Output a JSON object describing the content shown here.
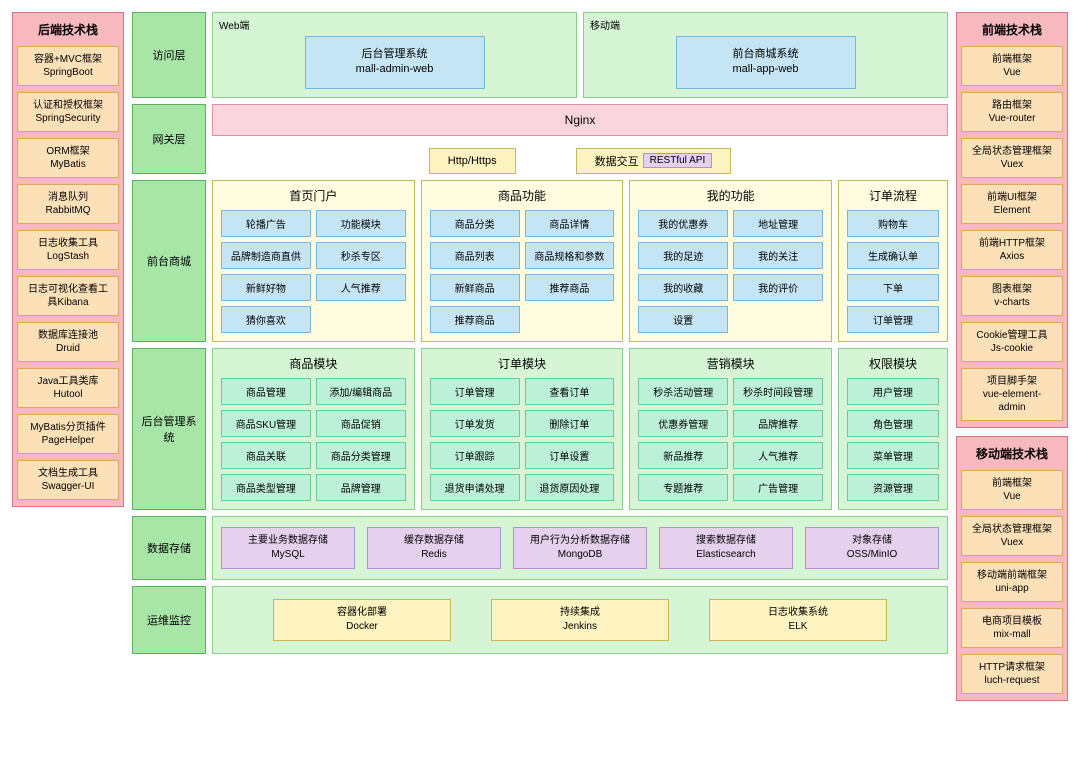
{
  "colors": {
    "pink_bg": "#f7b9bd",
    "pink_border": "#d97580",
    "green_bg": "#a8e6a8",
    "green_border": "#5fb05f",
    "lightgreen_bg": "#d5f5d5",
    "lightgreen_border": "#8ecf8e",
    "yellow_bg": "#fdf3c0",
    "yellow_border": "#c9b858",
    "lightyellow_bg": "#fffce0",
    "orange_bg": "#fce0b8",
    "orange_border": "#d9a860",
    "blue_bg": "#c5e5f5",
    "blue_border": "#7ab8d8",
    "mint_bg": "#bdf0d8",
    "mint_border": "#6fc9a0",
    "purple_bg": "#e5d0ee",
    "purple_border": "#b590c9",
    "pinkbar_bg": "#fbd5de",
    "pinkbar_border": "#d98fa0"
  },
  "left_stack": {
    "title": "后端技术栈",
    "items": [
      {
        "l1": "容器+MVC框架",
        "l2": "SpringBoot"
      },
      {
        "l1": "认证和授权框架",
        "l2": "SpringSecurity"
      },
      {
        "l1": "ORM框架",
        "l2": "MyBatis"
      },
      {
        "l1": "消息队列",
        "l2": "RabbitMQ"
      },
      {
        "l1": "日志收集工具",
        "l2": "LogStash"
      },
      {
        "l1": "日志可视化查看工",
        "l2": "具Kibana"
      },
      {
        "l1": "数据库连接池",
        "l2": "Druid"
      },
      {
        "l1": "Java工具类库",
        "l2": "Hutool"
      },
      {
        "l1": "MyBatis分页插件",
        "l2": "PageHelper"
      },
      {
        "l1": "文档生成工具",
        "l2": "Swagger-UI"
      }
    ]
  },
  "right_stack_1": {
    "title": "前端技术栈",
    "items": [
      {
        "l1": "前端框架",
        "l2": "Vue"
      },
      {
        "l1": "路由框架",
        "l2": "Vue-router"
      },
      {
        "l1": "全局状态管理框架",
        "l2": "Vuex"
      },
      {
        "l1": "前端UI框架",
        "l2": "Element"
      },
      {
        "l1": "前端HTTP框架",
        "l2": "Axios"
      },
      {
        "l1": "图表框架",
        "l2": "v-charts"
      },
      {
        "l1": "Cookie管理工具",
        "l2": "Js-cookie"
      },
      {
        "l1": "项目脚手架",
        "l2": "vue-element-",
        "l3": "admin"
      }
    ]
  },
  "right_stack_2": {
    "title": "移动端技术栈",
    "items": [
      {
        "l1": "前端框架",
        "l2": "Vue"
      },
      {
        "l1": "全局状态管理框架",
        "l2": "Vuex"
      },
      {
        "l1": "移动端前端框架",
        "l2": "uni-app"
      },
      {
        "l1": "电商项目模板",
        "l2": "mix-mall"
      },
      {
        "l1": "HTTP请求框架",
        "l2": "luch-request"
      }
    ]
  },
  "layers": {
    "access": {
      "label": "访问层",
      "web_label": "Web端",
      "web_l1": "后台管理系统",
      "web_l2": "mall-admin-web",
      "mobile_label": "移动端",
      "mobile_l1": "前台商城系统",
      "mobile_l2": "mall-app-web"
    },
    "gateway": {
      "label": "网关层",
      "nginx": "Nginx",
      "http": "Http/Https",
      "data_prefix": "数据交互",
      "rest": "RESTful API"
    },
    "front_mall": {
      "label": "前台商城",
      "groups": [
        {
          "title": "首页门户",
          "cols": 2,
          "chips": [
            "轮播广告",
            "功能模块",
            "品牌制造商直供",
            "秒杀专区",
            "新鲜好物",
            "人气推荐",
            "猜你喜欢"
          ]
        },
        {
          "title": "商品功能",
          "cols": 2,
          "chips": [
            "商品分类",
            "商品详情",
            "商品列表",
            "商品规格和参数",
            "新鲜商品",
            "推荐商品",
            "推荐商品"
          ]
        },
        {
          "title": "我的功能",
          "cols": 2,
          "chips": [
            "我的优惠券",
            "地址管理",
            "我的足迹",
            "我的关注",
            "我的收藏",
            "我的评价",
            "设置"
          ]
        },
        {
          "title": "订单流程",
          "cols": 1,
          "chips": [
            "购物车",
            "生成确认单",
            "下单",
            "订单管理"
          ]
        }
      ]
    },
    "backend_mgmt": {
      "label": "后台管理系统",
      "groups": [
        {
          "title": "商品模块",
          "cols": 2,
          "chips": [
            "商品管理",
            "添加/编辑商品",
            "商品SKU管理",
            "商品促销",
            "商品关联",
            "商品分类管理",
            "商品类型管理",
            "品牌管理"
          ]
        },
        {
          "title": "订单模块",
          "cols": 2,
          "chips": [
            "订单管理",
            "查看订单",
            "订单发货",
            "删除订单",
            "订单跟踪",
            "订单设置",
            "退货申请处理",
            "退货原因处理"
          ]
        },
        {
          "title": "营销模块",
          "cols": 2,
          "chips": [
            "秒杀活动管理",
            "秒杀时间段管理",
            "优惠券管理",
            "品牌推荐",
            "新品推荐",
            "人气推荐",
            "专题推荐",
            "广告管理"
          ]
        },
        {
          "title": "权限模块",
          "cols": 1,
          "chips": [
            "用户管理",
            "角色管理",
            "菜单管理",
            "资源管理"
          ]
        }
      ]
    },
    "storage": {
      "label": "数据存储",
      "items": [
        {
          "l1": "主要业务数据存储",
          "l2": "MySQL"
        },
        {
          "l1": "缓存数据存储",
          "l2": "Redis"
        },
        {
          "l1": "用户行为分析数据存储",
          "l2": "MongoDB"
        },
        {
          "l1": "搜索数据存储",
          "l2": "Elasticsearch"
        },
        {
          "l1": "对象存储",
          "l2": "OSS/MinIO"
        }
      ]
    },
    "ops": {
      "label": "运维监控",
      "items": [
        {
          "l1": "容器化部署",
          "l2": "Docker"
        },
        {
          "l1": "持续集成",
          "l2": "Jenkins"
        },
        {
          "l1": "日志收集系统",
          "l2": "ELK"
        }
      ]
    }
  }
}
